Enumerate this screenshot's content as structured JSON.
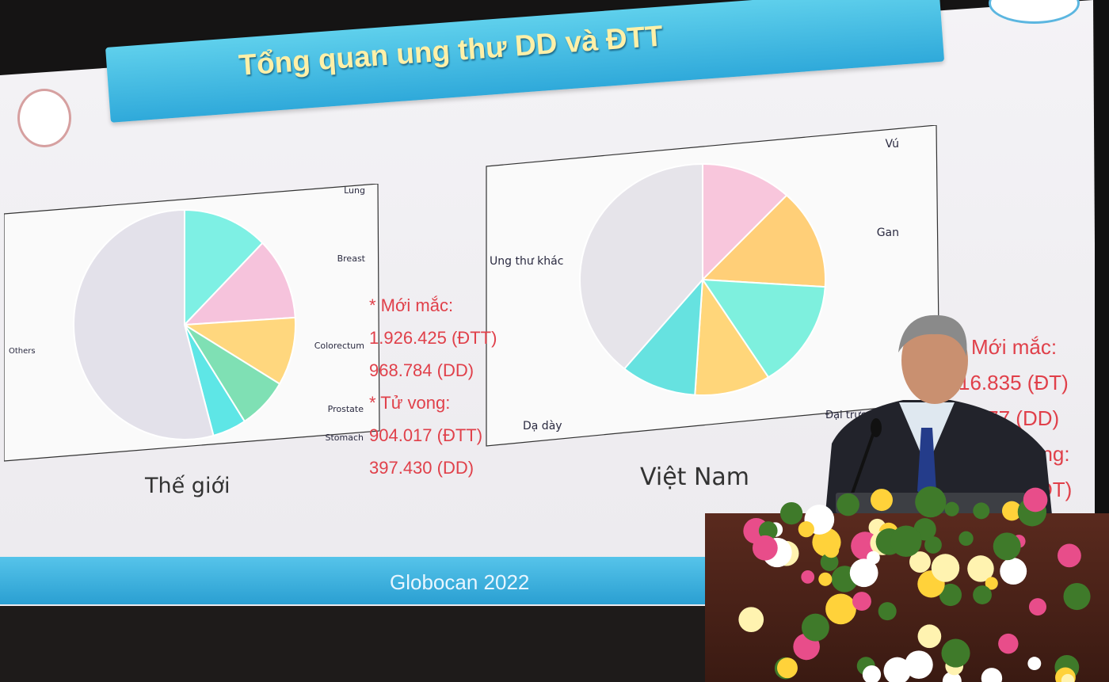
{
  "slide": {
    "title": "Tổng quan ung thư DD và ĐTT",
    "footer": "Globocan 2022",
    "world": {
      "caption": "Thế giới",
      "stats": [
        "* Mới mắc:",
        "1.926.425 (ĐTT)",
        "968.784 (DD)",
        "* Tử vong:",
        "904.017 (ĐTT)",
        "397.430 (DD)"
      ]
    },
    "vietnam": {
      "caption": "Việt Nam",
      "stats": [
        "Mới mắc:",
        "16.835 (ĐT)",
        "6.277 (DD)",
        "ong:",
        "ĐT)"
      ]
    }
  },
  "chart_data": [
    {
      "type": "pie",
      "labels": [
        "Lung",
        "Breast",
        "Colorectum",
        "Prostate",
        "Stomach",
        "Others"
      ],
      "values": [
        12.4,
        11.6,
        9.6,
        7.3,
        4.9,
        54.2
      ],
      "colors": [
        "#7ef0e4",
        "#f6c3dc",
        "#ffd77e",
        "#7fe0b4",
        "#5ee6e6",
        "#e3e1ea"
      ]
    },
    {
      "type": "pie",
      "labels": [
        "Vú",
        "Gan",
        "",
        "Đại trực tr",
        "Dạ dày",
        "Ung thư khác"
      ],
      "values": [
        12,
        14,
        15,
        10,
        10,
        39
      ],
      "colors": [
        "#f8c6dc",
        "#ffcf78",
        "#7ef0de",
        "#ffd67a",
        "#66e2e0",
        "#e6e4ea"
      ]
    }
  ]
}
